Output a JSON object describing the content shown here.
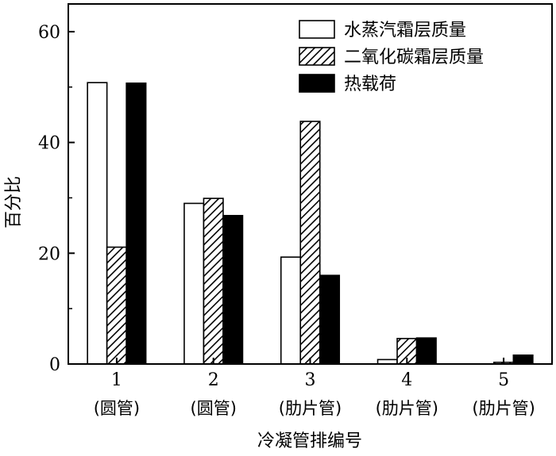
{
  "chart_data": {
    "type": "bar",
    "xlabel": "冷凝管排编号",
    "ylabel": "百分比",
    "ylim": [
      0,
      65
    ],
    "yticks": [
      0,
      20,
      40,
      60
    ],
    "categories": [
      {
        "number": "1",
        "label": "(圆管)"
      },
      {
        "number": "2",
        "label": "(圆管)"
      },
      {
        "number": "3",
        "label": "(肋片管)"
      },
      {
        "number": "4",
        "label": "(肋片管)"
      },
      {
        "number": "5",
        "label": "(肋片管)"
      }
    ],
    "series": [
      {
        "name": "水蒸汽霜层质量",
        "fill": "white",
        "values": [
          50.8,
          29.0,
          19.3,
          0.8,
          0.0
        ]
      },
      {
        "name": "二氧化碳霜层质量",
        "fill": "hatch",
        "values": [
          21.1,
          29.9,
          43.8,
          4.6,
          0.3
        ]
      },
      {
        "name": "热载荷",
        "fill": "black",
        "values": [
          50.7,
          26.8,
          16.0,
          4.7,
          1.6
        ]
      }
    ],
    "legend_position": "top-right",
    "grid": false
  }
}
